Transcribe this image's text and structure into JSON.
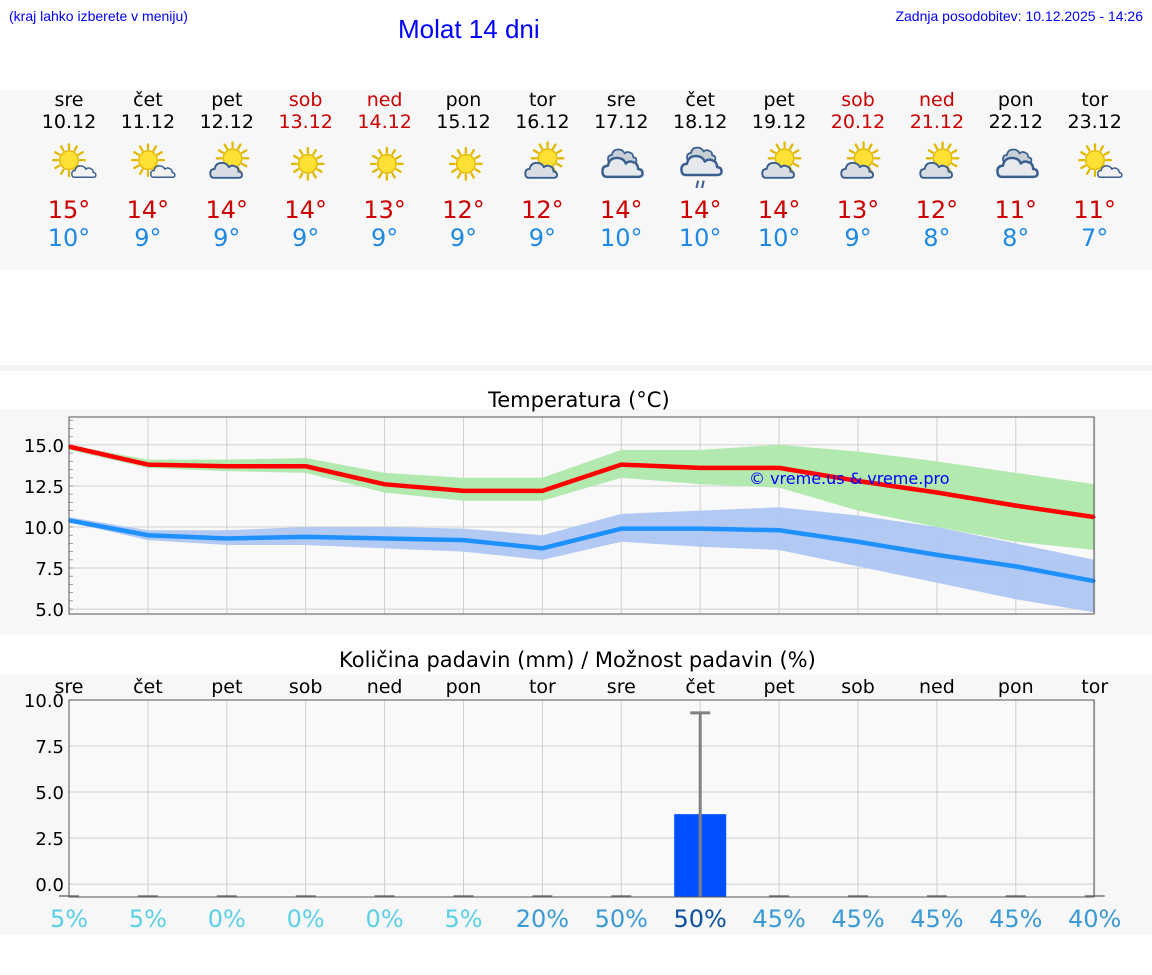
{
  "header": {
    "hint": "(kraj lahko izberete v meniju)",
    "title": "Molat 14 dni",
    "updated": "Zadnja posodobitev: 10.12.2025 - 14:26"
  },
  "colors": {
    "max": "#cc0000",
    "min": "#1e88e5",
    "max_line": "#ff0000",
    "min_line": "#1e90ff",
    "max_band": "#aee8aa",
    "min_band": "#aec6f2",
    "bar": "#0050ff",
    "watermark": "#0000ff"
  },
  "days": [
    {
      "name": "sre",
      "date": "10.12",
      "weekend": false,
      "icon": "sun-small-cloud-icon",
      "max": "15°",
      "min": "10°"
    },
    {
      "name": "čet",
      "date": "11.12",
      "weekend": false,
      "icon": "sun-small-cloud-icon",
      "max": "14°",
      "min": "9°"
    },
    {
      "name": "pet",
      "date": "12.12",
      "weekend": false,
      "icon": "sun-cloud-icon",
      "max": "14°",
      "min": "9°"
    },
    {
      "name": "sob",
      "date": "13.12",
      "weekend": true,
      "icon": "sun-icon",
      "max": "14°",
      "min": "9°"
    },
    {
      "name": "ned",
      "date": "14.12",
      "weekend": true,
      "icon": "sun-icon",
      "max": "13°",
      "min": "9°"
    },
    {
      "name": "pon",
      "date": "15.12",
      "weekend": false,
      "icon": "sun-icon",
      "max": "12°",
      "min": "9°"
    },
    {
      "name": "tor",
      "date": "16.12",
      "weekend": false,
      "icon": "sun-cloud-icon",
      "max": "12°",
      "min": "9°"
    },
    {
      "name": "sre",
      "date": "17.12",
      "weekend": false,
      "icon": "cloudy-icon",
      "max": "14°",
      "min": "10°"
    },
    {
      "name": "čet",
      "date": "18.12",
      "weekend": false,
      "icon": "rain-cloud-icon",
      "max": "14°",
      "min": "10°"
    },
    {
      "name": "pet",
      "date": "19.12",
      "weekend": false,
      "icon": "sun-cloud-icon",
      "max": "14°",
      "min": "10°"
    },
    {
      "name": "sob",
      "date": "20.12",
      "weekend": true,
      "icon": "sun-cloud-icon",
      "max": "13°",
      "min": "9°"
    },
    {
      "name": "ned",
      "date": "21.12",
      "weekend": true,
      "icon": "sun-cloud-icon",
      "max": "12°",
      "min": "8°"
    },
    {
      "name": "pon",
      "date": "22.12",
      "weekend": false,
      "icon": "cloudy-icon",
      "max": "11°",
      "min": "8°"
    },
    {
      "name": "tor",
      "date": "23.12",
      "weekend": false,
      "icon": "sun-small-cloud-icon",
      "max": "11°",
      "min": "7°"
    }
  ],
  "chart_data": [
    {
      "type": "line",
      "title": "Temperatura (°C)",
      "ylim": [
        4.7,
        16.7
      ],
      "yticks": [
        "15.0",
        "12.5",
        "10.0",
        "7.5",
        "5.0"
      ],
      "ytick_values": [
        15.0,
        12.5,
        10.0,
        7.5,
        5.0
      ],
      "grid": true,
      "watermark": "© vreme.us & vreme.pro",
      "series": [
        {
          "name": "max",
          "values": [
            14.9,
            13.8,
            13.7,
            13.7,
            12.6,
            12.2,
            12.2,
            13.8,
            13.6,
            13.6,
            12.8,
            12.1,
            11.3,
            10.6
          ],
          "band_low": [
            14.7,
            13.6,
            13.4,
            13.3,
            12.1,
            11.6,
            11.6,
            13.0,
            12.6,
            12.4,
            11.0,
            10.0,
            9.1,
            8.6
          ],
          "band_high": [
            15.0,
            14.1,
            14.1,
            14.2,
            13.3,
            13.0,
            13.0,
            14.7,
            14.7,
            15.0,
            14.6,
            14.0,
            13.3,
            12.6
          ]
        },
        {
          "name": "min",
          "values": [
            10.4,
            9.5,
            9.3,
            9.4,
            9.3,
            9.2,
            8.7,
            9.9,
            9.9,
            9.8,
            9.1,
            8.3,
            7.6,
            6.7
          ],
          "band_low": [
            10.3,
            9.2,
            8.9,
            8.9,
            8.7,
            8.5,
            8.0,
            9.1,
            8.8,
            8.6,
            7.6,
            6.6,
            5.6,
            4.8
          ],
          "band_high": [
            10.6,
            9.8,
            9.8,
            10.0,
            10.0,
            9.9,
            9.5,
            10.8,
            11.0,
            11.2,
            10.7,
            10.0,
            9.0,
            8.0
          ]
        }
      ]
    },
    {
      "type": "bar",
      "title": "Količina padavin (mm) / Možnost padavin (%)",
      "categories": [
        "sre",
        "čet",
        "pet",
        "sob",
        "ned",
        "pon",
        "tor",
        "sre",
        "čet",
        "pet",
        "sob",
        "ned",
        "pon",
        "tor"
      ],
      "ylim": [
        -0.7,
        10.0
      ],
      "yticks": [
        "10.0",
        "7.5",
        "5.0",
        "2.5",
        "0.0"
      ],
      "ytick_values": [
        10.0,
        7.5,
        5.0,
        2.5,
        0.0
      ],
      "values": [
        0,
        0,
        0,
        0,
        0,
        0,
        0,
        0,
        3.8,
        0,
        0,
        0,
        0,
        0
      ],
      "error_max": [
        0,
        0,
        0,
        0,
        0,
        0,
        0,
        0,
        9.3,
        0,
        0,
        0,
        0,
        0
      ],
      "probability": [
        "5%",
        "5%",
        "0%",
        "0%",
        "0%",
        "5%",
        "20%",
        "50%",
        "50%",
        "45%",
        "45%",
        "45%",
        "45%",
        "40%"
      ],
      "probability_colors": [
        "#5ad0e6",
        "#5ad0e6",
        "#5ad0e6",
        "#5ad0e6",
        "#5ad0e6",
        "#5ad0e6",
        "#3a9ad8",
        "#3a9ad8",
        "#0d4fa0",
        "#3a9ad8",
        "#3a9ad8",
        "#3a9ad8",
        "#3a9ad8",
        "#3a9ad8"
      ]
    }
  ]
}
